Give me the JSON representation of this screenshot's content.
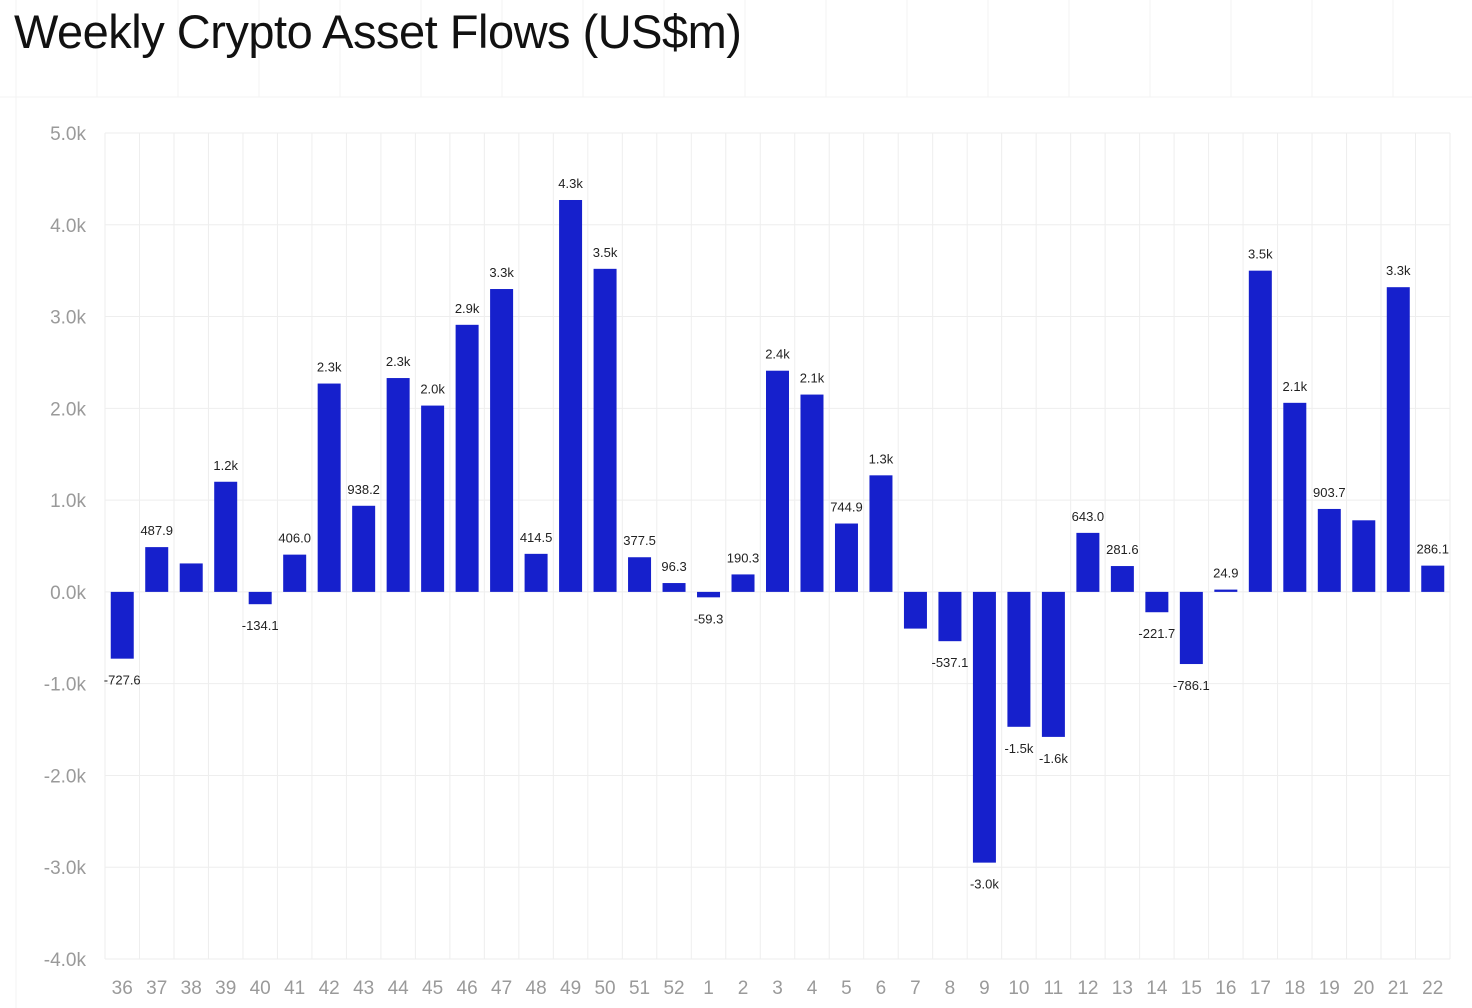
{
  "title": "Weekly Crypto Asset Flows (US$m)",
  "chart_data": {
    "type": "bar",
    "title": "Weekly Crypto Asset Flows (US$m)",
    "xlabel": "",
    "ylabel": "",
    "ylim": [
      -4000,
      5000
    ],
    "yticks": [
      5000,
      4000,
      3000,
      2000,
      1000,
      0,
      -1000,
      -2000,
      -3000,
      -4000
    ],
    "ytick_labels": [
      "5.0k",
      "4.0k",
      "3.0k",
      "2.0k",
      "1.0k",
      "0.0k",
      "-1.0k",
      "-2.0k",
      "-3.0k",
      "-4.0k"
    ],
    "grid": true,
    "legend": "none",
    "bar_color": "#1620cc",
    "categories": [
      "36",
      "37",
      "38",
      "39",
      "40",
      "41",
      "42",
      "43",
      "44",
      "45",
      "46",
      "47",
      "48",
      "49",
      "50",
      "51",
      "52",
      "1",
      "2",
      "3",
      "4",
      "5",
      "6",
      "7",
      "8",
      "9",
      "10",
      "11",
      "12",
      "13",
      "14",
      "15",
      "16",
      "17",
      "18",
      "19",
      "20",
      "21",
      "22"
    ],
    "values": [
      -727.6,
      487.9,
      310,
      1200,
      -134.1,
      406.0,
      2270,
      938.2,
      2330,
      2030,
      2910,
      3300,
      414.5,
      4270,
      3520,
      377.5,
      96.3,
      -59.3,
      190.3,
      2410,
      2150,
      744.9,
      1270,
      -400,
      -537.1,
      -2950,
      -1470,
      -1580,
      643.0,
      281.6,
      -221.7,
      -786.1,
      24.9,
      3500,
      2060,
      903.7,
      780,
      3320,
      286.1
    ],
    "data_labels": [
      "-727.6",
      "487.9",
      "",
      "1.2k",
      "-134.1",
      "406.0",
      "2.3k",
      "938.2",
      "2.3k",
      "2.0k",
      "2.9k",
      "3.3k",
      "414.5",
      "4.3k",
      "3.5k",
      "377.5",
      "96.3",
      "-59.3",
      "190.3",
      "2.4k",
      "2.1k",
      "744.9",
      "1.3k",
      "",
      "-537.1",
      "-3.0k",
      "-1.5k",
      "-1.6k",
      "643.0",
      "281.6",
      "-221.7",
      "-786.1",
      "24.9",
      "3.5k",
      "2.1k",
      "903.7",
      "",
      "3.3k",
      "286.1"
    ]
  }
}
